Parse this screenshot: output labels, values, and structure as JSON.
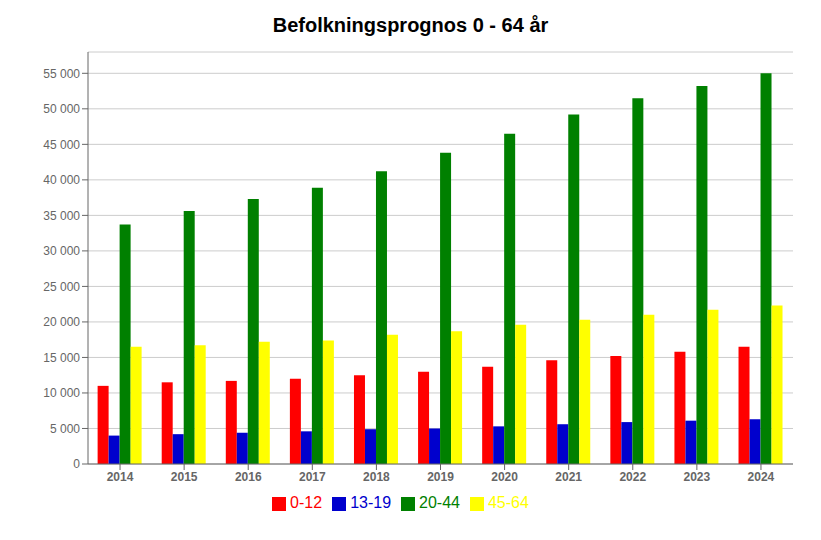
{
  "chart_data": {
    "type": "bar",
    "title": "Befolkningsprognos 0 - 64 år",
    "categories": [
      "2014",
      "2015",
      "2016",
      "2017",
      "2018",
      "2019",
      "2020",
      "2021",
      "2022",
      "2023",
      "2024"
    ],
    "series": [
      {
        "name": "0-12",
        "color": "#FF0000",
        "values": [
          11000,
          11500,
          11700,
          12000,
          12500,
          13000,
          13700,
          14600,
          15200,
          15800,
          16500
        ]
      },
      {
        "name": "13-19",
        "color": "#0000CD",
        "values": [
          4000,
          4200,
          4400,
          4600,
          4900,
          5000,
          5300,
          5600,
          5900,
          6100,
          6300
        ]
      },
      {
        "name": "20-44",
        "color": "#008000",
        "values": [
          33700,
          35600,
          37300,
          38900,
          41200,
          43800,
          46500,
          49200,
          51500,
          53200,
          55000
        ]
      },
      {
        "name": "45-64",
        "color": "#FFFF00",
        "values": [
          16500,
          16700,
          17200,
          17400,
          18200,
          18700,
          19600,
          20300,
          21000,
          21700,
          22300
        ]
      }
    ],
    "ylim": [
      0,
      58000
    ],
    "yticks": [
      0,
      {
        "value": 5000,
        "label": "5 000"
      },
      {
        "value": 10000,
        "label": "10 000"
      },
      {
        "value": 15000,
        "label": "15 000"
      },
      {
        "value": 20000,
        "label": "20 000"
      },
      {
        "value": 25000,
        "label": "25 000"
      },
      {
        "value": 30000,
        "label": "30 000"
      },
      {
        "value": 35000,
        "label": "35 000"
      },
      {
        "value": 40000,
        "label": "40 000"
      },
      {
        "value": 45000,
        "label": "45 000"
      },
      {
        "value": 50000,
        "label": "50 000"
      },
      {
        "value": 55000,
        "label": "55 000"
      }
    ],
    "grid": true,
    "legend": "bottom"
  }
}
